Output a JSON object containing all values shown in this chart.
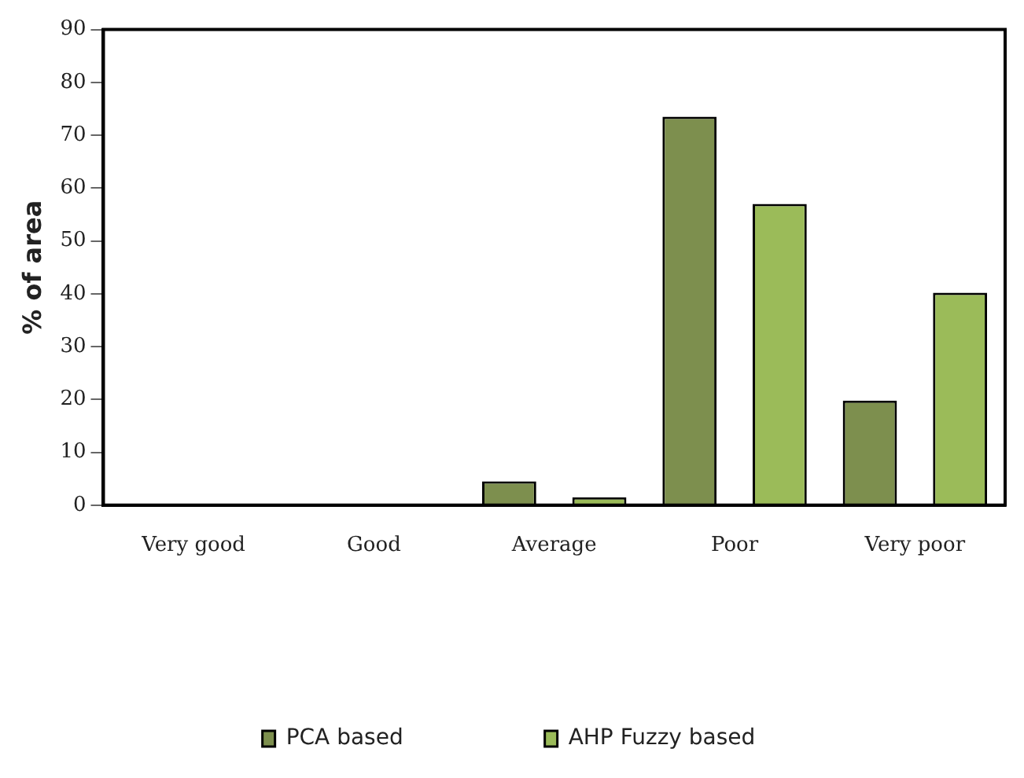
{
  "chart_data": {
    "type": "bar",
    "ylabel": "% of area",
    "categories": [
      "Very good",
      "Good",
      "Average",
      "Poor",
      "Very poor"
    ],
    "series": [
      {
        "name": "PCA based",
        "color": "#7d8f4e",
        "values": [
          0,
          0,
          4.5,
          73.5,
          19.8
        ]
      },
      {
        "name": "AHP Fuzzy based",
        "color": "#9bbb59",
        "values": [
          0,
          0,
          1.5,
          57,
          40.2
        ]
      }
    ],
    "ylim": [
      0,
      90
    ],
    "yticks": [
      0,
      10,
      20,
      30,
      40,
      50,
      60,
      70,
      80,
      90
    ],
    "grid": false,
    "legend": "bottom"
  }
}
